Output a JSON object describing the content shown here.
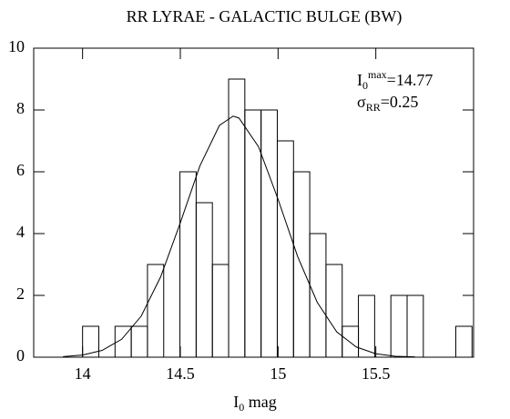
{
  "chart_data": {
    "type": "histogram",
    "title": "RR LYRAE - GALACTIC BULGE  (BW)",
    "xlabel": {
      "base": "I",
      "sub": "0",
      "rest": " mag"
    },
    "annotations": [
      {
        "base": "I",
        "sub": "0",
        "sup": "max",
        "text": "=14.77"
      },
      {
        "base": "σ",
        "sub": "RR",
        "text": "=0.25"
      }
    ],
    "bins": [
      14,
      14.083,
      14.166,
      14.249,
      14.332,
      14.415,
      14.498,
      14.581,
      14.664,
      14.747,
      14.83,
      14.913,
      14.996,
      15.079,
      15.162,
      15.245,
      15.328,
      15.411,
      15.494,
      15.577,
      15.66,
      15.743,
      15.826,
      15.909,
      15.992
    ],
    "counts": [
      1,
      0,
      1,
      1,
      3,
      0,
      6,
      5,
      3,
      9,
      8,
      8,
      7,
      6,
      4,
      3,
      1,
      2,
      0,
      2,
      2,
      0,
      0,
      1
    ],
    "curve": {
      "x": [
        13.9,
        14.0,
        14.1,
        14.2,
        14.3,
        14.4,
        14.5,
        14.6,
        14.7,
        14.77,
        14.8,
        14.9,
        15.0,
        15.1,
        15.2,
        15.3,
        15.4,
        15.5,
        15.6,
        15.7
      ],
      "values": [
        0.02,
        0.07,
        0.22,
        0.58,
        1.33,
        2.61,
        4.35,
        6.19,
        7.5,
        7.8,
        7.74,
        6.81,
        5.11,
        3.26,
        1.78,
        0.82,
        0.33,
        0.11,
        0.03,
        0.01
      ]
    },
    "color": "#000000",
    "xlim": [
      13.75,
      16.0
    ],
    "ylim": [
      0,
      10
    ],
    "xticks": [
      14,
      14.5,
      15,
      15.5
    ],
    "yticks": [
      0,
      2,
      4,
      6,
      8,
      10
    ]
  }
}
